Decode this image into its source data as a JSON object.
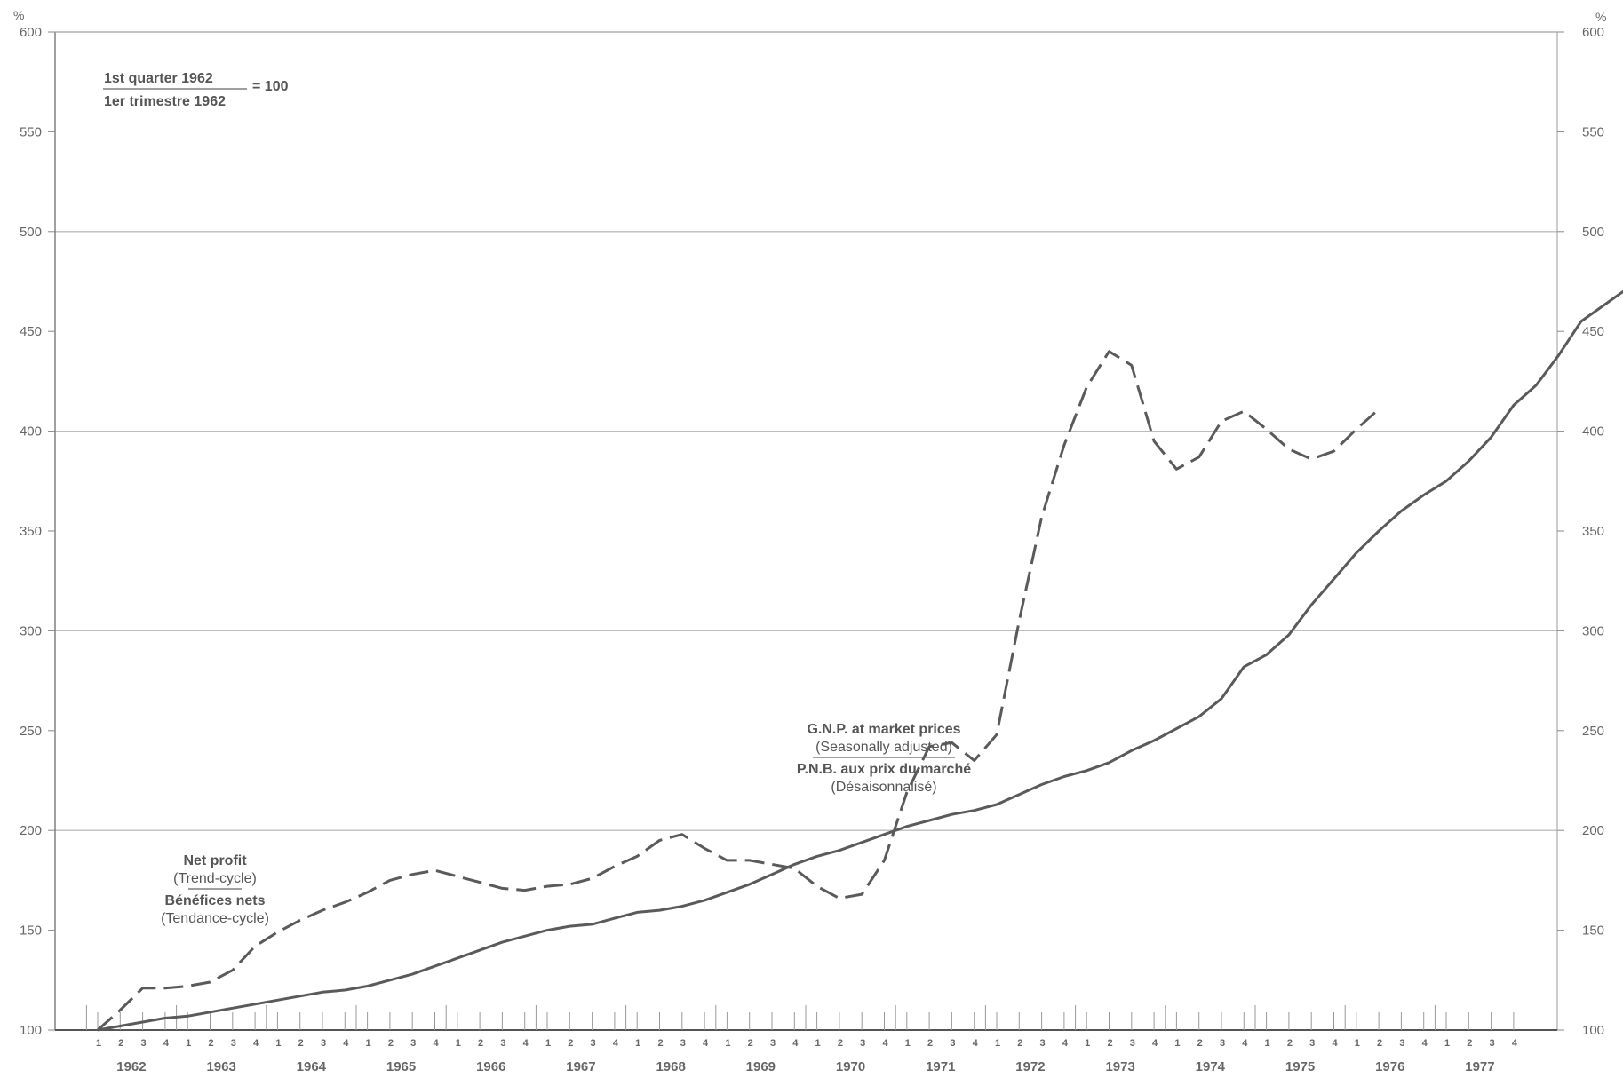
{
  "chart_data": {
    "type": "line",
    "unit_label": "%",
    "base_note": {
      "top": "1st quarter 1962",
      "bottom": "1er trimestre 1962",
      "value": "= 100"
    },
    "ylim": [
      100,
      600
    ],
    "y_ticks": [
      100,
      150,
      200,
      250,
      300,
      350,
      400,
      450,
      500,
      550,
      600
    ],
    "years": [
      "1962",
      "1963",
      "1964",
      "1965",
      "1966",
      "1967",
      "1968",
      "1969",
      "1970",
      "1971",
      "1972",
      "1973",
      "1974",
      "1975",
      "1976",
      "1977"
    ],
    "quarter_labels": [
      "1",
      "2",
      "3",
      "4"
    ],
    "grid": "horizontal at 100-point intervals",
    "series": [
      {
        "name": "G.N.P. at market prices / P.N.B. aux prix du marché",
        "label_lines": [
          "G.N.P. at market prices",
          "(Seasonally adjusted)",
          "P.N.B. aux prix du marché",
          "(Désaisonnalisé)"
        ],
        "style": "solid",
        "values": [
          100,
          102,
          104,
          106,
          107,
          109,
          111,
          113,
          115,
          117,
          119,
          120,
          122,
          125,
          128,
          132,
          136,
          140,
          144,
          147,
          150,
          152,
          153,
          156,
          159,
          160,
          162,
          165,
          169,
          173,
          178,
          183,
          187,
          190,
          194,
          198,
          202,
          205,
          208,
          210,
          213,
          218,
          223,
          227,
          230,
          234,
          240,
          245,
          251,
          257,
          266,
          282,
          288,
          298,
          313,
          326,
          339,
          350,
          360,
          368,
          375,
          385,
          397,
          413,
          423,
          438,
          455,
          463,
          471,
          481,
          486
        ]
      },
      {
        "name": "Net profit / Bénéfices nets",
        "label_lines": [
          "Net profit",
          "(Trend-cycle)",
          "Bénéfices nets",
          "(Tendance-cycle)"
        ],
        "style": "dashed",
        "values": [
          100,
          110,
          121,
          121,
          122,
          124,
          130,
          142,
          149,
          155,
          160,
          164,
          169,
          175,
          178,
          180,
          177,
          174,
          171,
          170,
          172,
          173,
          176,
          182,
          187,
          195,
          198,
          191,
          185,
          185,
          183,
          181,
          172,
          166,
          168,
          185,
          219,
          242,
          244,
          235,
          248,
          305,
          357,
          393,
          422,
          440,
          433,
          395,
          381,
          387,
          405,
          410,
          401,
          391,
          386,
          390,
          401,
          411
        ]
      }
    ]
  }
}
